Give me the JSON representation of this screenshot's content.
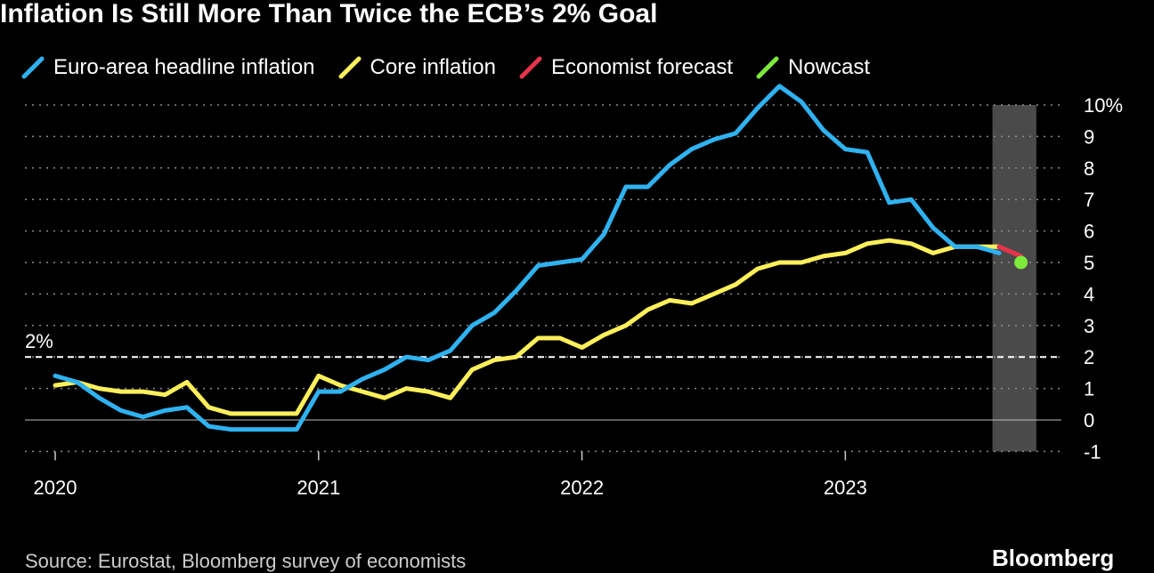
{
  "chart_data": {
    "type": "line",
    "title": "Inflation Is Still More Than Twice the ECB’s 2% Goal",
    "xlabel": "",
    "ylabel": "",
    "ylim": [
      -1,
      10
    ],
    "y_ticks": [
      "-1",
      "0",
      "1",
      "2",
      "3",
      "4",
      "5",
      "6",
      "7",
      "8",
      "9",
      "10%"
    ],
    "x_ticks": [
      {
        "label": "2020",
        "month_index": 0
      },
      {
        "label": "2021",
        "month_index": 12
      },
      {
        "label": "2022",
        "month_index": 24
      },
      {
        "label": "2023",
        "month_index": 36
      }
    ],
    "grid": true,
    "reference_line": {
      "label": "2%",
      "value": 2
    },
    "shaded_region": {
      "from_month_index": 42.7,
      "to_month_index": 44.7
    },
    "series": [
      {
        "name": "Euro-area headline inflation",
        "color": "#2fb2f0",
        "x": [
          0,
          1,
          2,
          3,
          4,
          5,
          6,
          7,
          8,
          9,
          10,
          11,
          12,
          13,
          14,
          15,
          16,
          17,
          18,
          19,
          20,
          21,
          22,
          23,
          24,
          25,
          26,
          27,
          28,
          29,
          30,
          31,
          32,
          33,
          34,
          35,
          36,
          37,
          38,
          39,
          40,
          41,
          42,
          43
        ],
        "values": [
          1.4,
          1.2,
          0.7,
          0.3,
          0.1,
          0.3,
          0.4,
          -0.2,
          -0.3,
          -0.3,
          -0.3,
          -0.3,
          0.9,
          0.9,
          1.3,
          1.6,
          2.0,
          1.9,
          2.2,
          3.0,
          3.4,
          4.1,
          4.9,
          5.0,
          5.1,
          5.9,
          7.4,
          7.4,
          8.1,
          8.6,
          8.9,
          9.1,
          9.9,
          10.6,
          10.1,
          9.2,
          8.6,
          8.5,
          6.9,
          7.0,
          6.1,
          5.5,
          5.5,
          5.3
        ]
      },
      {
        "name": "Core inflation",
        "color": "#ffef5a",
        "x": [
          0,
          1,
          2,
          3,
          4,
          5,
          6,
          7,
          8,
          9,
          10,
          11,
          12,
          13,
          14,
          15,
          16,
          17,
          18,
          19,
          20,
          21,
          22,
          23,
          24,
          25,
          26,
          27,
          28,
          29,
          30,
          31,
          32,
          33,
          34,
          35,
          36,
          37,
          38,
          39,
          40,
          41,
          42,
          43
        ],
        "values": [
          1.1,
          1.2,
          1.0,
          0.9,
          0.9,
          0.8,
          1.2,
          0.4,
          0.2,
          0.2,
          0.2,
          0.2,
          1.4,
          1.1,
          0.9,
          0.7,
          1.0,
          0.9,
          0.7,
          1.6,
          1.9,
          2.0,
          2.6,
          2.6,
          2.3,
          2.7,
          3.0,
          3.5,
          3.8,
          3.7,
          4.0,
          4.3,
          4.8,
          5.0,
          5.0,
          5.2,
          5.3,
          5.6,
          5.7,
          5.6,
          5.3,
          5.5,
          5.5,
          5.5
        ]
      },
      {
        "name": "Economist forecast",
        "color": "#e8344a",
        "x": [
          43,
          44
        ],
        "values": [
          5.5,
          5.2
        ]
      },
      {
        "name": "Nowcast",
        "color": "#7dea3c",
        "x": [
          44
        ],
        "values": [
          5.0
        ]
      }
    ]
  },
  "footer": {
    "source": "Source: Eurostat, Bloomberg survey of economists",
    "brand": "Bloomberg"
  }
}
